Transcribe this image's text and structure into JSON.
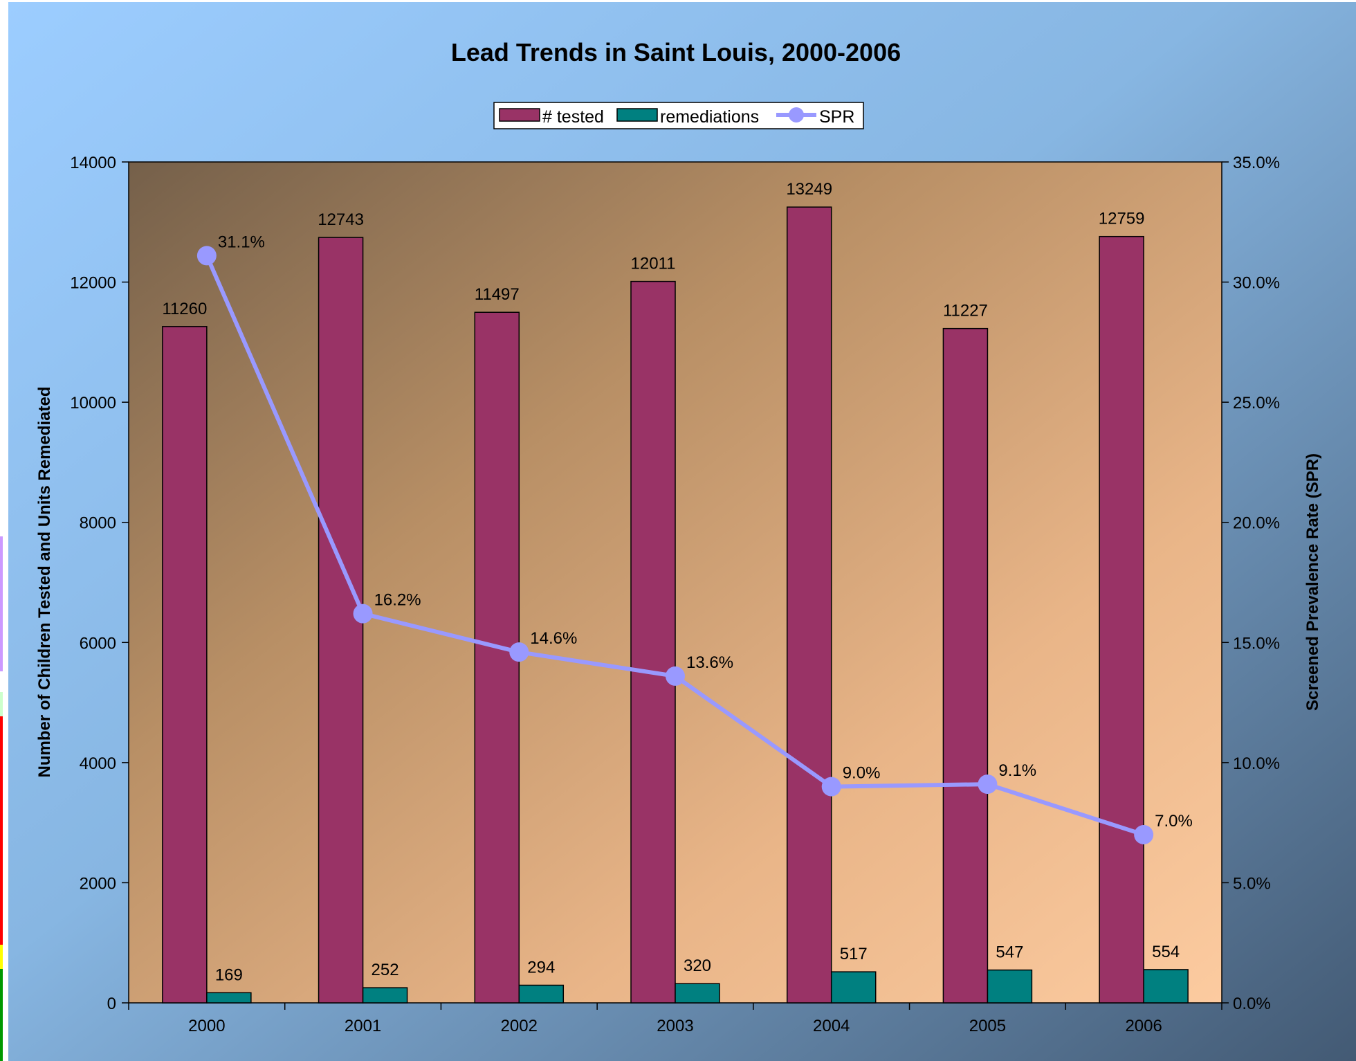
{
  "chart_data": {
    "type": "bar",
    "title": "Lead Trends in Saint Louis, 2000-2006",
    "categories": [
      "2000",
      "2001",
      "2002",
      "2003",
      "2004",
      "2005",
      "2006"
    ],
    "series": [
      {
        "name": "# tested",
        "type": "bar",
        "axis": "left",
        "color": "#993366",
        "values": [
          11260,
          12743,
          11497,
          12011,
          13249,
          11227,
          12759
        ],
        "labels": [
          "11260",
          "12743",
          "11497",
          "12011",
          "13249",
          "11227",
          "12759"
        ]
      },
      {
        "name": "remediations",
        "type": "bar",
        "axis": "left",
        "color": "#008080",
        "values": [
          169,
          252,
          294,
          320,
          517,
          547,
          554
        ],
        "labels": [
          "169",
          "252",
          "294",
          "320",
          "517",
          "547",
          "554"
        ]
      },
      {
        "name": "SPR",
        "type": "line",
        "axis": "right",
        "color": "#9999FF",
        "values": [
          31.1,
          16.2,
          14.6,
          13.6,
          9.0,
          9.1,
          7.0
        ],
        "labels": [
          "31.1%",
          "16.2%",
          "14.6%",
          "13.6%",
          "9.0%",
          "9.1%",
          "7.0%"
        ]
      }
    ],
    "ylabel": "Number of Children Tested and Units Remediated",
    "y2label": "Screened Prevalence Rate (SPR)",
    "ylim": [
      0,
      14000
    ],
    "y2lim": [
      0,
      35
    ],
    "yticks": [
      "0",
      "2000",
      "4000",
      "6000",
      "8000",
      "10000",
      "12000",
      "14000"
    ],
    "y2ticks": [
      "0.0%",
      "5.0%",
      "10.0%",
      "15.0%",
      "20.0%",
      "25.0%",
      "30.0%",
      "35.0%"
    ],
    "legend_position": "top-center",
    "grid": false
  }
}
